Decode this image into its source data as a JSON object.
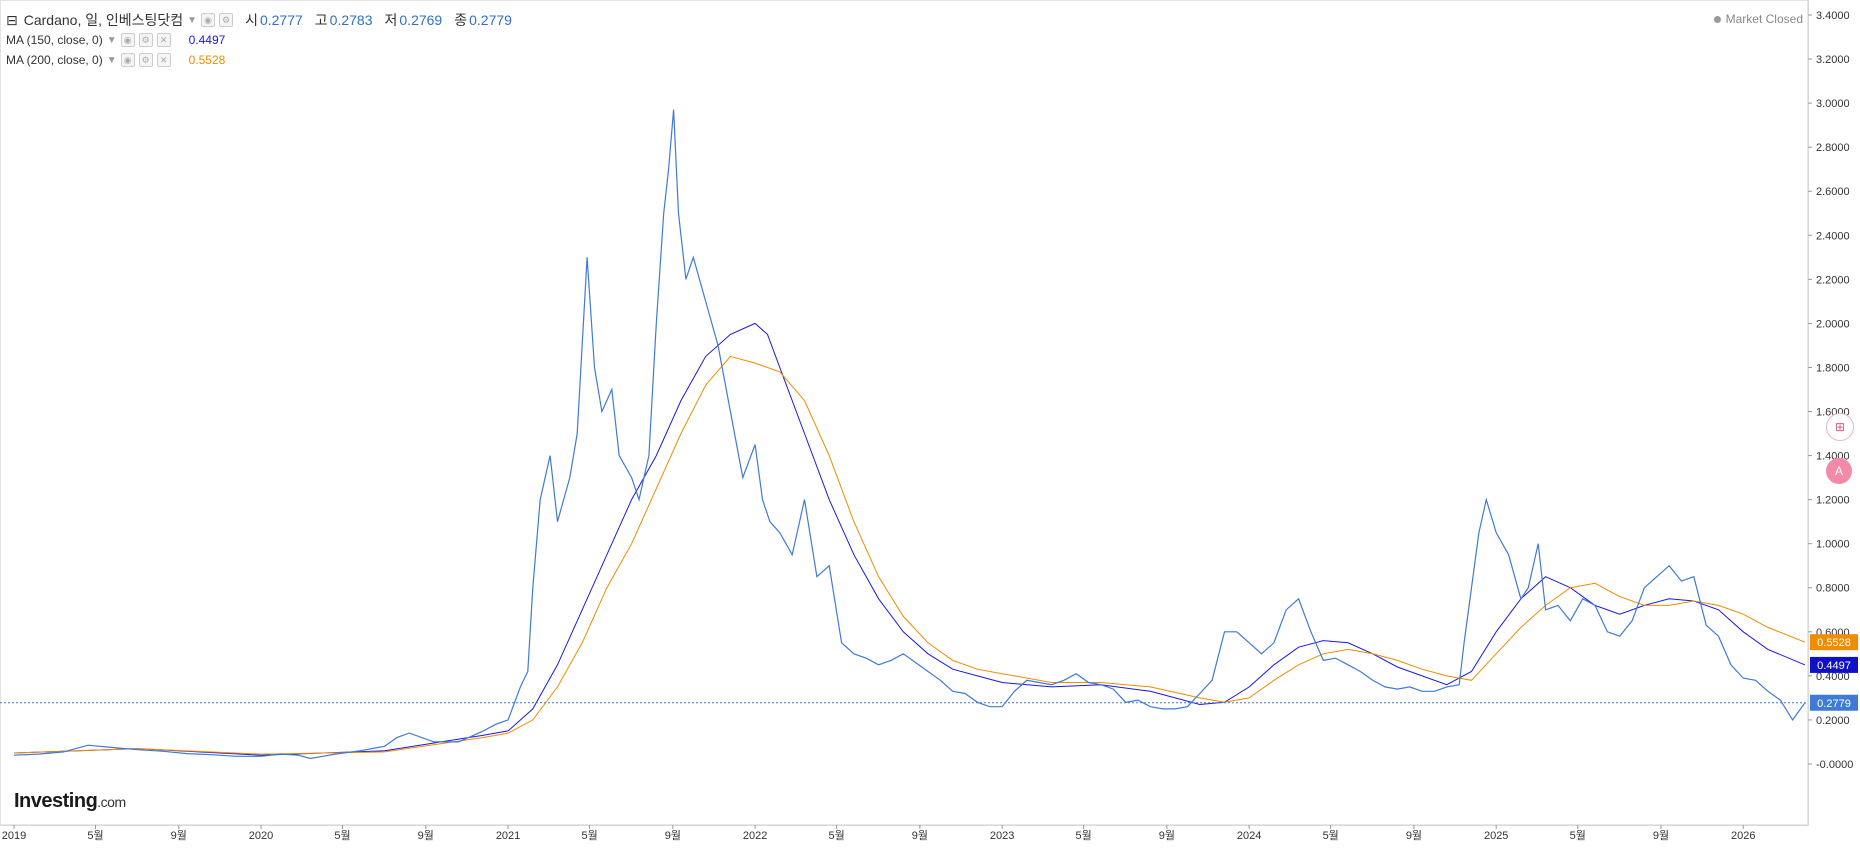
{
  "header": {
    "symbol_title": "Cardano, 일, 인베스팅닷컴",
    "ohlc": [
      {
        "label": "시",
        "value": "0.2777"
      },
      {
        "label": "고",
        "value": "0.2783"
      },
      {
        "label": "저",
        "value": "0.2769"
      },
      {
        "label": "종",
        "value": "0.2779"
      }
    ],
    "status": "Market Closed"
  },
  "indicators": [
    {
      "label": "MA (150, close, 0)",
      "value": "0.4497",
      "color": "#1a18e6"
    },
    {
      "label": "MA (200, close, 0)",
      "value": "0.5528",
      "color": "#f08c00"
    }
  ],
  "brand": {
    "name": "Investing",
    "domain": ".com"
  },
  "chart_data": {
    "type": "line",
    "ylim": [
      -0.1,
      3.4
    ],
    "y_ticks": [
      "3.4000",
      "3.2000",
      "3.0000",
      "2.8000",
      "2.6000",
      "2.4000",
      "2.2000",
      "2.0000",
      "1.8000",
      "1.6000",
      "1.4000",
      "1.2000",
      "1.0000",
      "0.8000",
      "0.6000",
      "0.4000",
      "0.2000",
      "-0.0000"
    ],
    "x_ticks": [
      {
        "label": "2019",
        "t": 2019.0
      },
      {
        "label": "5월",
        "t": 2019.33
      },
      {
        "label": "9월",
        "t": 2019.667
      },
      {
        "label": "2020",
        "t": 2020.0
      },
      {
        "label": "5월",
        "t": 2020.33
      },
      {
        "label": "9월",
        "t": 2020.667
      },
      {
        "label": "2021",
        "t": 2021.0
      },
      {
        "label": "5월",
        "t": 2021.33
      },
      {
        "label": "9월",
        "t": 2021.667
      },
      {
        "label": "2022",
        "t": 2022.0
      },
      {
        "label": "5월",
        "t": 2022.33
      },
      {
        "label": "9월",
        "t": 2022.667
      },
      {
        "label": "2023",
        "t": 2023.0
      },
      {
        "label": "5월",
        "t": 2023.33
      },
      {
        "label": "9월",
        "t": 2023.667
      },
      {
        "label": "2024",
        "t": 2024.0
      },
      {
        "label": "5월",
        "t": 2024.33
      },
      {
        "label": "9월",
        "t": 2024.667
      },
      {
        "label": "2025",
        "t": 2025.0
      },
      {
        "label": "5월",
        "t": 2025.33
      },
      {
        "label": "9월",
        "t": 2025.667
      },
      {
        "label": "2026",
        "t": 2026.0
      }
    ],
    "series": [
      {
        "name": "Cardano",
        "color": "#3f7ad6",
        "points": [
          [
            2019.0,
            0.04
          ],
          [
            2019.1,
            0.045
          ],
          [
            2019.2,
            0.055
          ],
          [
            2019.3,
            0.085
          ],
          [
            2019.4,
            0.075
          ],
          [
            2019.5,
            0.065
          ],
          [
            2019.6,
            0.058
          ],
          [
            2019.7,
            0.047
          ],
          [
            2019.8,
            0.042
          ],
          [
            2019.9,
            0.035
          ],
          [
            2020.0,
            0.035
          ],
          [
            2020.08,
            0.045
          ],
          [
            2020.15,
            0.04
          ],
          [
            2020.2,
            0.025
          ],
          [
            2020.25,
            0.035
          ],
          [
            2020.3,
            0.045
          ],
          [
            2020.4,
            0.06
          ],
          [
            2020.5,
            0.08
          ],
          [
            2020.55,
            0.12
          ],
          [
            2020.6,
            0.14
          ],
          [
            2020.7,
            0.1
          ],
          [
            2020.8,
            0.1
          ],
          [
            2020.9,
            0.15
          ],
          [
            2020.95,
            0.18
          ],
          [
            2021.0,
            0.2
          ],
          [
            2021.05,
            0.35
          ],
          [
            2021.08,
            0.42
          ],
          [
            2021.1,
            0.8
          ],
          [
            2021.13,
            1.2
          ],
          [
            2021.17,
            1.4
          ],
          [
            2021.2,
            1.1
          ],
          [
            2021.25,
            1.3
          ],
          [
            2021.28,
            1.5
          ],
          [
            2021.32,
            2.3
          ],
          [
            2021.35,
            1.8
          ],
          [
            2021.38,
            1.6
          ],
          [
            2021.42,
            1.7
          ],
          [
            2021.45,
            1.4
          ],
          [
            2021.5,
            1.3
          ],
          [
            2021.53,
            1.2
          ],
          [
            2021.57,
            1.4
          ],
          [
            2021.6,
            2.0
          ],
          [
            2021.63,
            2.5
          ],
          [
            2021.65,
            2.7
          ],
          [
            2021.67,
            2.97
          ],
          [
            2021.69,
            2.5
          ],
          [
            2021.72,
            2.2
          ],
          [
            2021.75,
            2.3
          ],
          [
            2021.8,
            2.1
          ],
          [
            2021.85,
            1.9
          ],
          [
            2021.9,
            1.6
          ],
          [
            2021.95,
            1.3
          ],
          [
            2022.0,
            1.45
          ],
          [
            2022.03,
            1.2
          ],
          [
            2022.06,
            1.1
          ],
          [
            2022.1,
            1.05
          ],
          [
            2022.15,
            0.95
          ],
          [
            2022.2,
            1.2
          ],
          [
            2022.25,
            0.85
          ],
          [
            2022.3,
            0.9
          ],
          [
            2022.35,
            0.55
          ],
          [
            2022.4,
            0.5
          ],
          [
            2022.45,
            0.48
          ],
          [
            2022.5,
            0.45
          ],
          [
            2022.55,
            0.47
          ],
          [
            2022.6,
            0.5
          ],
          [
            2022.65,
            0.46
          ],
          [
            2022.7,
            0.42
          ],
          [
            2022.75,
            0.38
          ],
          [
            2022.8,
            0.33
          ],
          [
            2022.85,
            0.32
          ],
          [
            2022.9,
            0.28
          ],
          [
            2022.95,
            0.26
          ],
          [
            2023.0,
            0.26
          ],
          [
            2023.05,
            0.33
          ],
          [
            2023.1,
            0.38
          ],
          [
            2023.15,
            0.37
          ],
          [
            2023.2,
            0.36
          ],
          [
            2023.25,
            0.38
          ],
          [
            2023.3,
            0.41
          ],
          [
            2023.35,
            0.37
          ],
          [
            2023.4,
            0.36
          ],
          [
            2023.45,
            0.34
          ],
          [
            2023.5,
            0.28
          ],
          [
            2023.55,
            0.29
          ],
          [
            2023.6,
            0.26
          ],
          [
            2023.65,
            0.25
          ],
          [
            2023.7,
            0.25
          ],
          [
            2023.75,
            0.26
          ],
          [
            2023.8,
            0.32
          ],
          [
            2023.85,
            0.38
          ],
          [
            2023.9,
            0.6
          ],
          [
            2023.95,
            0.6
          ],
          [
            2024.0,
            0.55
          ],
          [
            2024.05,
            0.5
          ],
          [
            2024.1,
            0.55
          ],
          [
            2024.15,
            0.7
          ],
          [
            2024.2,
            0.75
          ],
          [
            2024.25,
            0.6
          ],
          [
            2024.3,
            0.47
          ],
          [
            2024.35,
            0.48
          ],
          [
            2024.4,
            0.45
          ],
          [
            2024.45,
            0.42
          ],
          [
            2024.5,
            0.38
          ],
          [
            2024.55,
            0.35
          ],
          [
            2024.6,
            0.34
          ],
          [
            2024.65,
            0.35
          ],
          [
            2024.7,
            0.33
          ],
          [
            2024.75,
            0.33
          ],
          [
            2024.8,
            0.35
          ],
          [
            2024.85,
            0.36
          ],
          [
            2024.87,
            0.55
          ],
          [
            2024.9,
            0.8
          ],
          [
            2024.93,
            1.05
          ],
          [
            2024.96,
            1.2
          ],
          [
            2025.0,
            1.05
          ],
          [
            2025.05,
            0.95
          ],
          [
            2025.1,
            0.75
          ],
          [
            2025.13,
            0.8
          ],
          [
            2025.17,
            1.0
          ],
          [
            2025.2,
            0.7
          ],
          [
            2025.25,
            0.72
          ],
          [
            2025.3,
            0.65
          ],
          [
            2025.35,
            0.75
          ],
          [
            2025.4,
            0.72
          ],
          [
            2025.45,
            0.6
          ],
          [
            2025.5,
            0.58
          ],
          [
            2025.55,
            0.65
          ],
          [
            2025.6,
            0.8
          ],
          [
            2025.65,
            0.85
          ],
          [
            2025.7,
            0.9
          ],
          [
            2025.75,
            0.83
          ],
          [
            2025.8,
            0.85
          ],
          [
            2025.85,
            0.63
          ],
          [
            2025.9,
            0.58
          ],
          [
            2025.95,
            0.45
          ],
          [
            2026.0,
            0.39
          ],
          [
            2026.05,
            0.38
          ],
          [
            2026.1,
            0.33
          ],
          [
            2026.15,
            0.29
          ],
          [
            2026.2,
            0.2
          ],
          [
            2026.25,
            0.2779
          ]
        ]
      },
      {
        "name": "MA (150, close, 0)",
        "color": "#1a18e6",
        "points": [
          [
            2019.0,
            0.05
          ],
          [
            2019.5,
            0.07
          ],
          [
            2020.0,
            0.04
          ],
          [
            2020.5,
            0.06
          ],
          [
            2020.9,
            0.13
          ],
          [
            2021.0,
            0.15
          ],
          [
            2021.1,
            0.25
          ],
          [
            2021.2,
            0.45
          ],
          [
            2021.3,
            0.7
          ],
          [
            2021.4,
            0.95
          ],
          [
            2021.5,
            1.2
          ],
          [
            2021.6,
            1.4
          ],
          [
            2021.7,
            1.65
          ],
          [
            2021.8,
            1.85
          ],
          [
            2021.9,
            1.95
          ],
          [
            2022.0,
            2.0
          ],
          [
            2022.05,
            1.95
          ],
          [
            2022.1,
            1.8
          ],
          [
            2022.2,
            1.5
          ],
          [
            2022.3,
            1.2
          ],
          [
            2022.4,
            0.95
          ],
          [
            2022.5,
            0.75
          ],
          [
            2022.6,
            0.6
          ],
          [
            2022.7,
            0.5
          ],
          [
            2022.8,
            0.43
          ],
          [
            2022.9,
            0.4
          ],
          [
            2023.0,
            0.37
          ],
          [
            2023.2,
            0.35
          ],
          [
            2023.4,
            0.36
          ],
          [
            2023.6,
            0.33
          ],
          [
            2023.8,
            0.27
          ],
          [
            2023.9,
            0.28
          ],
          [
            2024.0,
            0.35
          ],
          [
            2024.1,
            0.45
          ],
          [
            2024.2,
            0.53
          ],
          [
            2024.3,
            0.56
          ],
          [
            2024.4,
            0.55
          ],
          [
            2024.5,
            0.5
          ],
          [
            2024.6,
            0.44
          ],
          [
            2024.7,
            0.4
          ],
          [
            2024.8,
            0.36
          ],
          [
            2024.9,
            0.42
          ],
          [
            2025.0,
            0.6
          ],
          [
            2025.1,
            0.75
          ],
          [
            2025.2,
            0.85
          ],
          [
            2025.3,
            0.8
          ],
          [
            2025.4,
            0.72
          ],
          [
            2025.5,
            0.68
          ],
          [
            2025.6,
            0.72
          ],
          [
            2025.7,
            0.75
          ],
          [
            2025.8,
            0.74
          ],
          [
            2025.9,
            0.7
          ],
          [
            2026.0,
            0.6
          ],
          [
            2026.1,
            0.52
          ],
          [
            2026.25,
            0.4497
          ]
        ]
      },
      {
        "name": "MA (200, close, 0)",
        "color": "#f08c00",
        "points": [
          [
            2019.0,
            0.05
          ],
          [
            2019.5,
            0.07
          ],
          [
            2020.0,
            0.045
          ],
          [
            2020.5,
            0.055
          ],
          [
            2020.9,
            0.12
          ],
          [
            2021.0,
            0.14
          ],
          [
            2021.1,
            0.2
          ],
          [
            2021.2,
            0.35
          ],
          [
            2021.3,
            0.55
          ],
          [
            2021.4,
            0.8
          ],
          [
            2021.5,
            1.0
          ],
          [
            2021.6,
            1.25
          ],
          [
            2021.7,
            1.5
          ],
          [
            2021.8,
            1.72
          ],
          [
            2021.9,
            1.85
          ],
          [
            2022.0,
            1.82
          ],
          [
            2022.1,
            1.78
          ],
          [
            2022.2,
            1.65
          ],
          [
            2022.3,
            1.4
          ],
          [
            2022.4,
            1.1
          ],
          [
            2022.5,
            0.85
          ],
          [
            2022.6,
            0.67
          ],
          [
            2022.7,
            0.55
          ],
          [
            2022.8,
            0.47
          ],
          [
            2022.9,
            0.43
          ],
          [
            2023.0,
            0.41
          ],
          [
            2023.2,
            0.37
          ],
          [
            2023.4,
            0.37
          ],
          [
            2023.6,
            0.35
          ],
          [
            2023.8,
            0.3
          ],
          [
            2023.9,
            0.28
          ],
          [
            2024.0,
            0.3
          ],
          [
            2024.1,
            0.38
          ],
          [
            2024.2,
            0.45
          ],
          [
            2024.3,
            0.5
          ],
          [
            2024.4,
            0.52
          ],
          [
            2024.5,
            0.5
          ],
          [
            2024.6,
            0.47
          ],
          [
            2024.7,
            0.43
          ],
          [
            2024.8,
            0.4
          ],
          [
            2024.9,
            0.38
          ],
          [
            2025.0,
            0.5
          ],
          [
            2025.1,
            0.62
          ],
          [
            2025.2,
            0.72
          ],
          [
            2025.3,
            0.8
          ],
          [
            2025.4,
            0.82
          ],
          [
            2025.5,
            0.76
          ],
          [
            2025.6,
            0.72
          ],
          [
            2025.7,
            0.72
          ],
          [
            2025.8,
            0.74
          ],
          [
            2025.9,
            0.72
          ],
          [
            2026.0,
            0.68
          ],
          [
            2026.1,
            0.62
          ],
          [
            2026.25,
            0.5528
          ]
        ]
      }
    ],
    "last_close": 0.2779,
    "price_tags": [
      {
        "value": 0.5528,
        "label": "0.5528",
        "color": "#f08c00"
      },
      {
        "value": 0.4497,
        "label": "0.4497",
        "color": "#1010c8"
      },
      {
        "value": 0.2779,
        "label": "0.2779",
        "color": "#3f7ad6"
      }
    ]
  }
}
